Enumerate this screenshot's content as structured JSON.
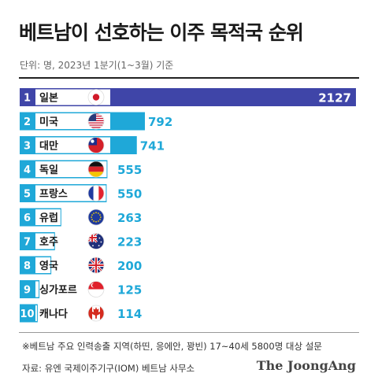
{
  "title": "베트남이 선호하는 이주 목적국 순위",
  "subtitle": "단위: 명, 2023년 1분기(1~3월) 기준",
  "footnote": "※베트남 주요 인력송출 지역(하띤, 응에안, 꽝빈) 17~40세 5800명 대상 설문",
  "source": "자료: 유엔 국제이주기구(IOM) 베트남 사무소",
  "logo": "The JoongAng",
  "colors": {
    "top_bar": "#3f45a8",
    "bar": "#1fa8d8",
    "rank_top": "#3f45a8",
    "rank": "#1fa8d8",
    "value_text": "#1fa8d8"
  },
  "chart_data": {
    "type": "bar",
    "orientation": "horizontal",
    "ranks": [
      "1",
      "2",
      "3",
      "4",
      "5",
      "6",
      "7",
      "8",
      "9",
      "10"
    ],
    "categories": [
      "일본",
      "미국",
      "대만",
      "독일",
      "프랑스",
      "유럽",
      "호주",
      "영국",
      "싱가포르",
      "캐나다"
    ],
    "values": [
      2127,
      792,
      741,
      555,
      550,
      263,
      223,
      200,
      125,
      114
    ],
    "value_labels": [
      "2127",
      "792",
      "741",
      "555",
      "550",
      "263",
      "223",
      "200",
      "125",
      "114"
    ],
    "flags": [
      "japan-flag-icon",
      "usa-flag-icon",
      "taiwan-flag-icon",
      "germany-flag-icon",
      "france-flag-icon",
      "eu-flag-icon",
      "australia-flag-icon",
      "uk-flag-icon",
      "singapore-flag-icon",
      "canada-flag-icon"
    ],
    "title": "베트남이 선호하는 이주 목적국 순위",
    "xlabel": "",
    "ylabel": "",
    "xlim": [
      0,
      2127
    ]
  }
}
